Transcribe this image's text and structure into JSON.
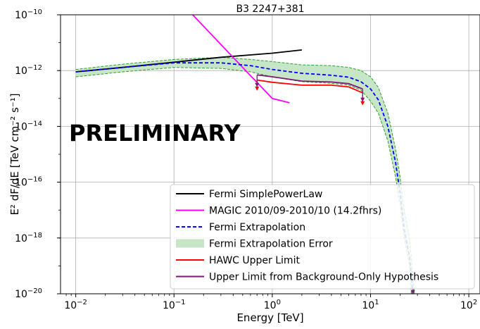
{
  "chart_data": {
    "type": "line",
    "title": "B3 2247+381",
    "xlabel": "Energy [TeV]",
    "ylabel": "E² dF/dE [TeV cm⁻² s⁻¹]",
    "x_scale": "log",
    "y_scale": "log",
    "xlim": [
      0.007,
      130
    ],
    "ylim": [
      1e-20,
      1e-10
    ],
    "grid": true,
    "legend_position": "lower-right",
    "watermark": "PRELIMINARY",
    "x_ticks": [
      {
        "value": 0.01,
        "base": "10",
        "exp": "−2"
      },
      {
        "value": 0.1,
        "base": "10",
        "exp": "−1"
      },
      {
        "value": 1,
        "base": "10",
        "exp": "0"
      },
      {
        "value": 10,
        "base": "10",
        "exp": "1"
      },
      {
        "value": 100,
        "base": "10",
        "exp": "2"
      }
    ],
    "y_ticks": [
      {
        "value": 1e-20,
        "base": "10",
        "exp": "−20"
      },
      {
        "value": 1e-18,
        "base": "10",
        "exp": "−18"
      },
      {
        "value": 1e-16,
        "base": "10",
        "exp": "−16"
      },
      {
        "value": 1e-14,
        "base": "10",
        "exp": "−14"
      },
      {
        "value": 1e-12,
        "base": "10",
        "exp": "−12"
      },
      {
        "value": 1e-10,
        "base": "10",
        "exp": "−10"
      }
    ],
    "series": [
      {
        "name": "Fermi SimplePowerLaw",
        "color": "#000000",
        "style": "solid",
        "points": [
          [
            0.01,
            9e-13
          ],
          [
            0.03,
            1.3e-12
          ],
          [
            0.1,
            2e-12
          ],
          [
            0.3,
            3e-12
          ],
          [
            1,
            4.2e-12
          ],
          [
            2.0,
            5.5e-12
          ]
        ]
      },
      {
        "name": "MAGIC 2010/09-2010/10 (14.2fhrs)",
        "color": "#ff00ff",
        "style": "solid",
        "points": [
          [
            0.155,
            1e-10
          ],
          [
            0.5,
            1.3e-12
          ],
          [
            1,
            1e-13
          ],
          [
            1.5,
            7e-14
          ]
        ]
      },
      {
        "name": "Fermi Extrapolation",
        "color": "#0000ff",
        "style": "dashed",
        "points": [
          [
            0.01,
            9e-13
          ],
          [
            0.03,
            1.3e-12
          ],
          [
            0.1,
            1.9e-12
          ],
          [
            0.3,
            1.9e-12
          ],
          [
            0.6,
            1.5e-12
          ],
          [
            1,
            1.1e-12
          ],
          [
            2,
            8e-13
          ],
          [
            4,
            6.8e-13
          ],
          [
            6,
            5.8e-13
          ],
          [
            8,
            4e-13
          ],
          [
            10,
            2.2e-13
          ],
          [
            12,
            9e-14
          ],
          [
            15,
            1e-14
          ],
          [
            18,
            5e-16
          ],
          [
            20,
            4e-17
          ],
          [
            22,
            2e-18
          ],
          [
            25,
            2e-19
          ],
          [
            27,
            1e-20
          ]
        ]
      },
      {
        "name": "Fermi Extrapolation Error",
        "color": "#2ca02c",
        "fill": "#c7e5c7",
        "style": "band",
        "upper": [
          [
            0.01,
            1.1e-12
          ],
          [
            0.03,
            1.7e-12
          ],
          [
            0.1,
            2.5e-12
          ],
          [
            0.3,
            3e-12
          ],
          [
            0.6,
            2.5e-12
          ],
          [
            1,
            2.1e-12
          ],
          [
            2,
            1.6e-12
          ],
          [
            4,
            1.5e-12
          ],
          [
            6,
            1.3e-12
          ],
          [
            8,
            1e-12
          ],
          [
            10,
            6e-13
          ],
          [
            12,
            2.5e-13
          ],
          [
            15,
            3e-14
          ],
          [
            18,
            1.5e-15
          ],
          [
            20,
            1.5e-16
          ],
          [
            22,
            1e-17
          ],
          [
            25,
            1e-18
          ],
          [
            28,
            1e-20
          ]
        ],
        "lower": [
          [
            0.01,
            6e-13
          ],
          [
            0.03,
            9e-13
          ],
          [
            0.1,
            1.3e-12
          ],
          [
            0.3,
            1.2e-12
          ],
          [
            0.6,
            9e-13
          ],
          [
            1,
            6e-13
          ],
          [
            2,
            4e-13
          ],
          [
            4,
            3.5e-13
          ],
          [
            6,
            3e-13
          ],
          [
            8,
            2e-13
          ],
          [
            10,
            8e-14
          ],
          [
            12,
            3e-14
          ],
          [
            15,
            3e-15
          ],
          [
            18,
            1.5e-16
          ],
          [
            20,
            1.5e-17
          ],
          [
            22,
            1e-18
          ],
          [
            25,
            1e-19
          ],
          [
            26,
            1e-20
          ]
        ]
      },
      {
        "name": "HAWC Upper Limit",
        "color": "#ff0000",
        "style": "solid",
        "points": [
          [
            0.7,
            4.6e-13
          ],
          [
            1,
            3.8e-13
          ],
          [
            2,
            3e-13
          ],
          [
            4,
            3e-13
          ],
          [
            6,
            2.6e-13
          ],
          [
            8.3,
            1.6e-13
          ]
        ]
      },
      {
        "name": "Upper Limit from Background-Only Hypothesis",
        "color": "#7a1a7a",
        "style": "solid",
        "points": [
          [
            0.7,
            7e-13
          ],
          [
            1,
            6e-13
          ],
          [
            2,
            4.2e-13
          ],
          [
            4,
            3.9e-13
          ],
          [
            6,
            3.4e-13
          ],
          [
            8.3,
            2.2e-13
          ]
        ]
      }
    ],
    "upper_limit_arrows": [
      {
        "x": 0.7,
        "y": 4.6e-13,
        "y_end": 2e-13,
        "color": "#ff0000"
      },
      {
        "x": 0.7,
        "y": 7e-13,
        "y_end": 2.7e-13,
        "color": "#7a1a7a"
      },
      {
        "x": 8.3,
        "y": 1.6e-13,
        "y_end": 6e-14,
        "color": "#ff0000"
      },
      {
        "x": 8.3,
        "y": 2.2e-13,
        "y_end": 8e-14,
        "color": "#7a1a7a"
      },
      {
        "x": 27,
        "y": 1.6e-20,
        "y_end": 1e-20,
        "color": "#7a1a7a"
      }
    ]
  }
}
